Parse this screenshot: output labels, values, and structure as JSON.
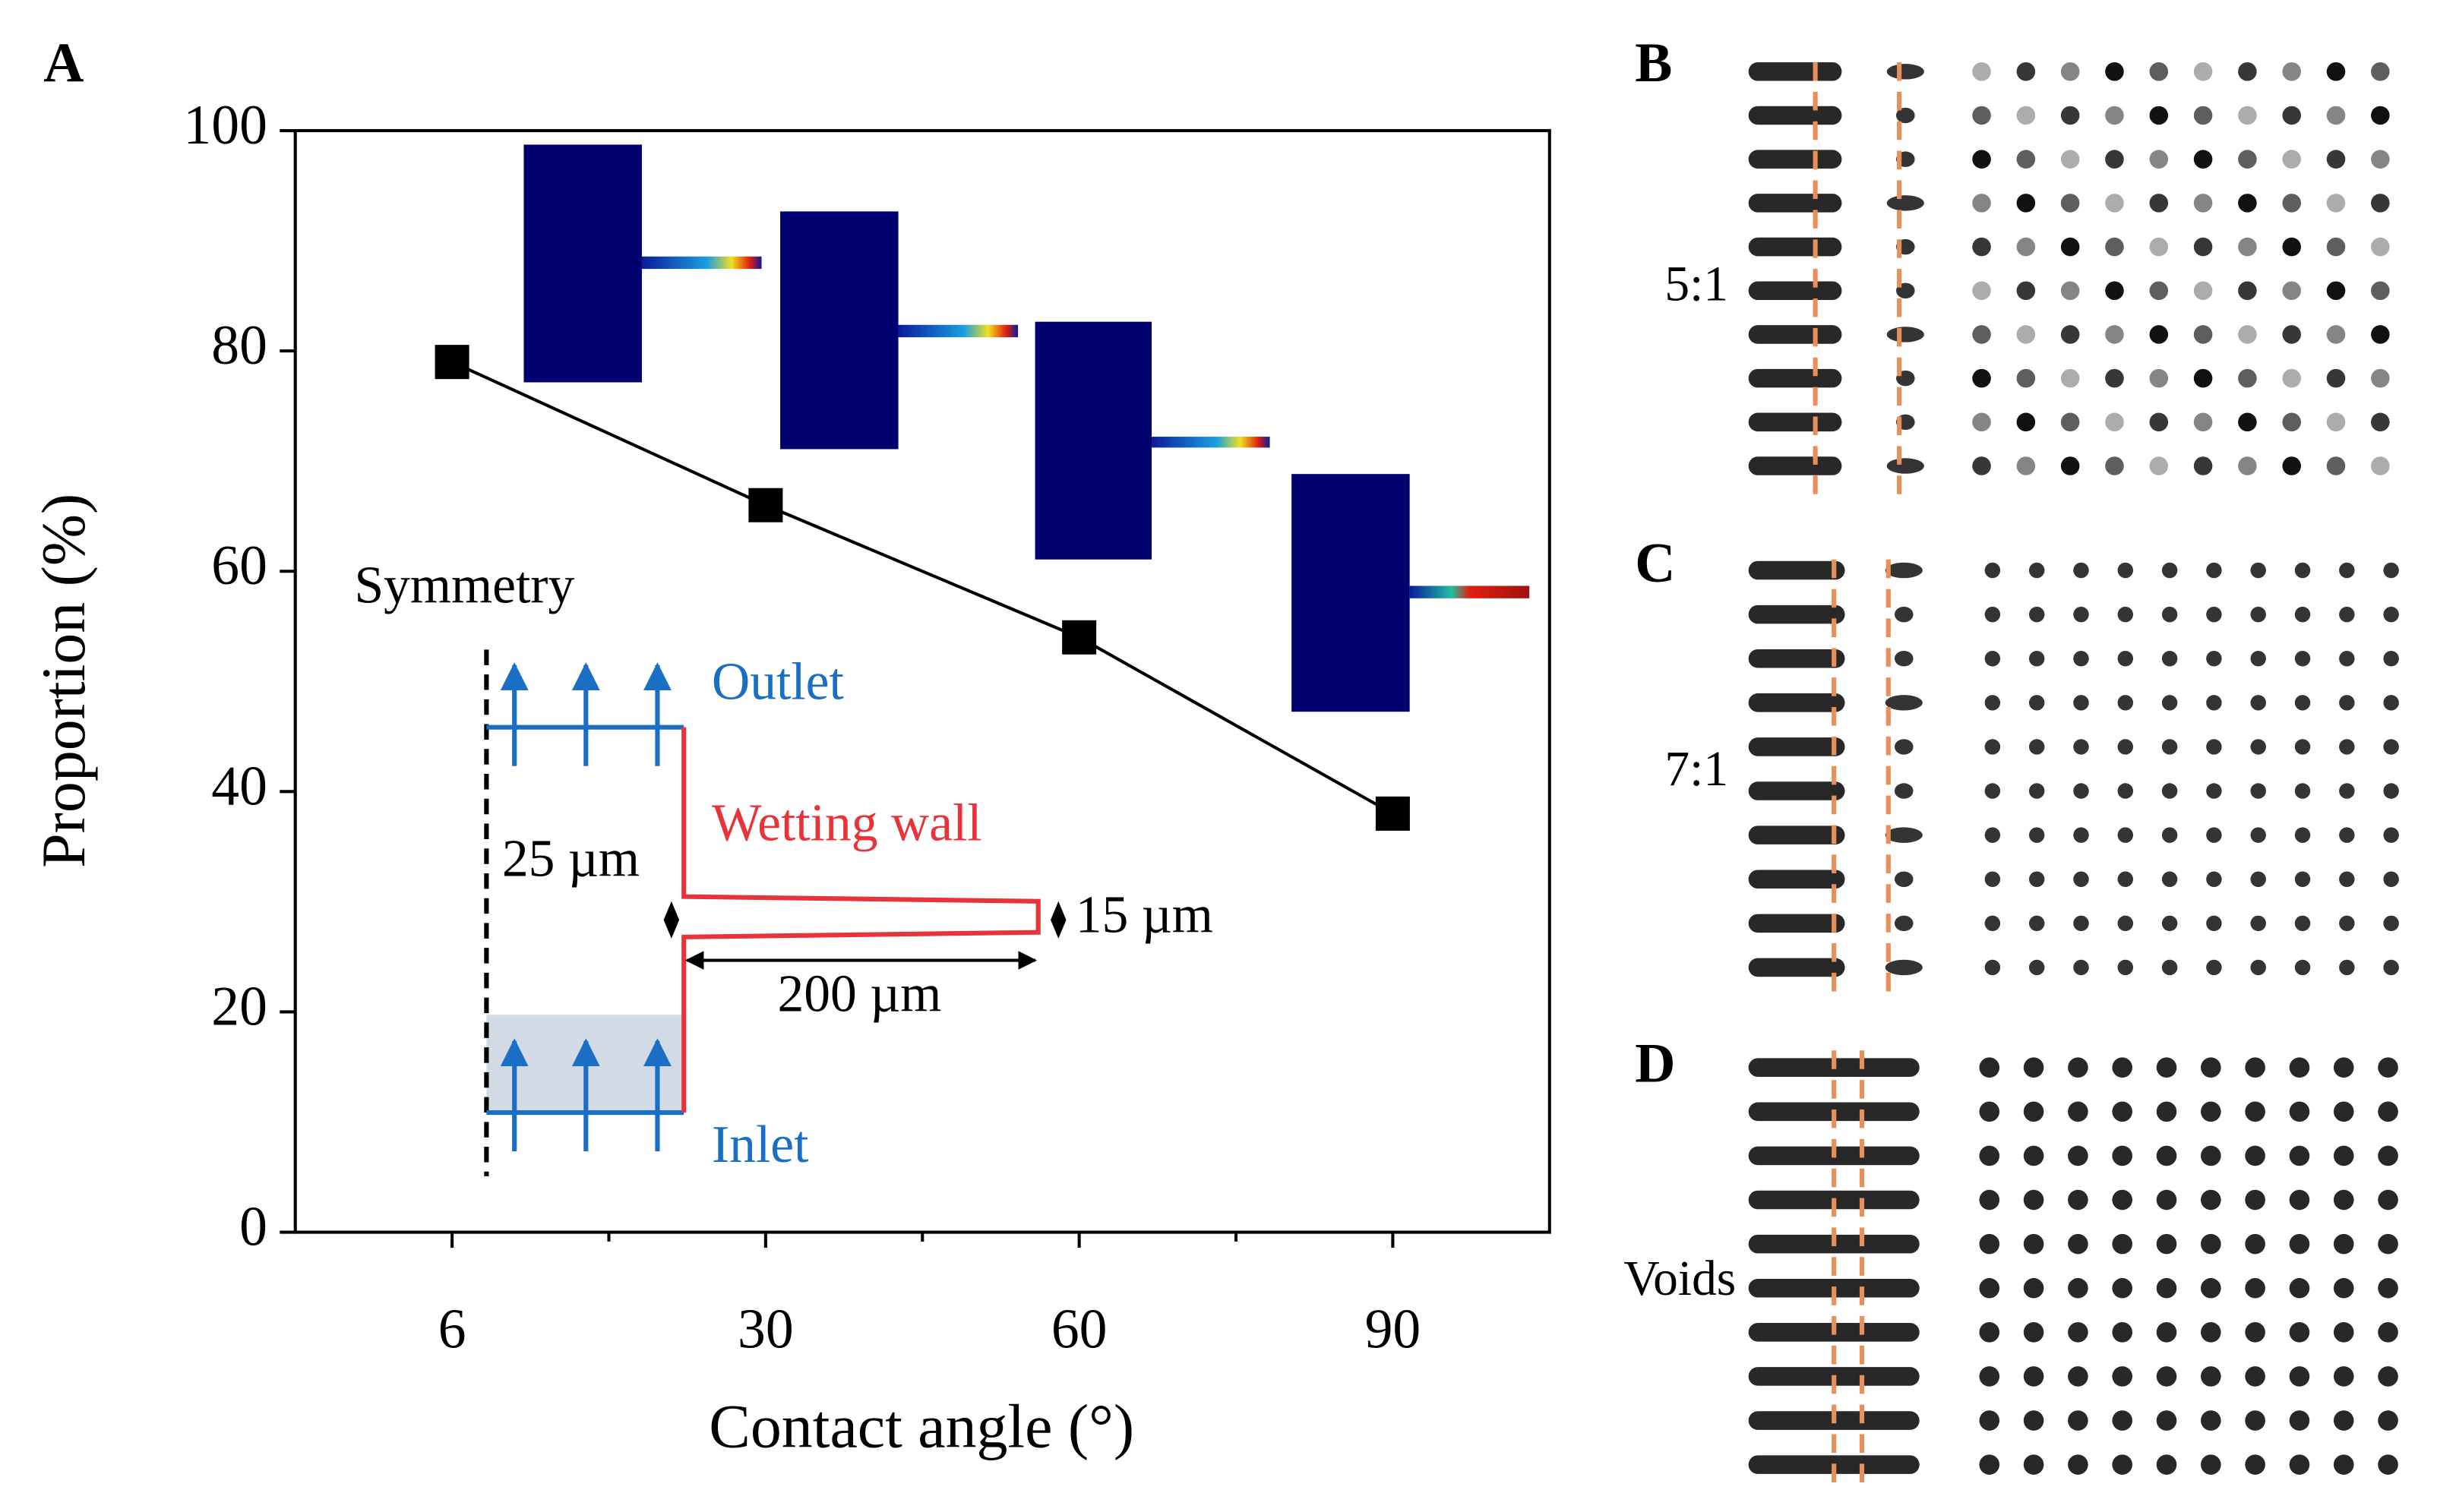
{
  "chart_data": {
    "type": "line",
    "panel_labels": [
      "A",
      "B",
      "C",
      "D"
    ],
    "xlabel": "Contact angle (°)",
    "ylabel": "Proportion (%)",
    "categories": [
      "6",
      "30",
      "60",
      "90"
    ],
    "series": [
      {
        "name": "Proportion",
        "color": "#000000",
        "values": [
          79,
          66,
          54,
          38
        ]
      }
    ],
    "ylim": [
      0,
      100
    ],
    "yticks": [
      0,
      20,
      40,
      60,
      80,
      100
    ],
    "annotations": [
      "Symmetry",
      "Outlet",
      "Wetting wall",
      "25 µm",
      "15 µm",
      "200 µm",
      "Inlet"
    ],
    "ratio_labels": [
      "5:1",
      "7:1",
      "Voids"
    ]
  }
}
